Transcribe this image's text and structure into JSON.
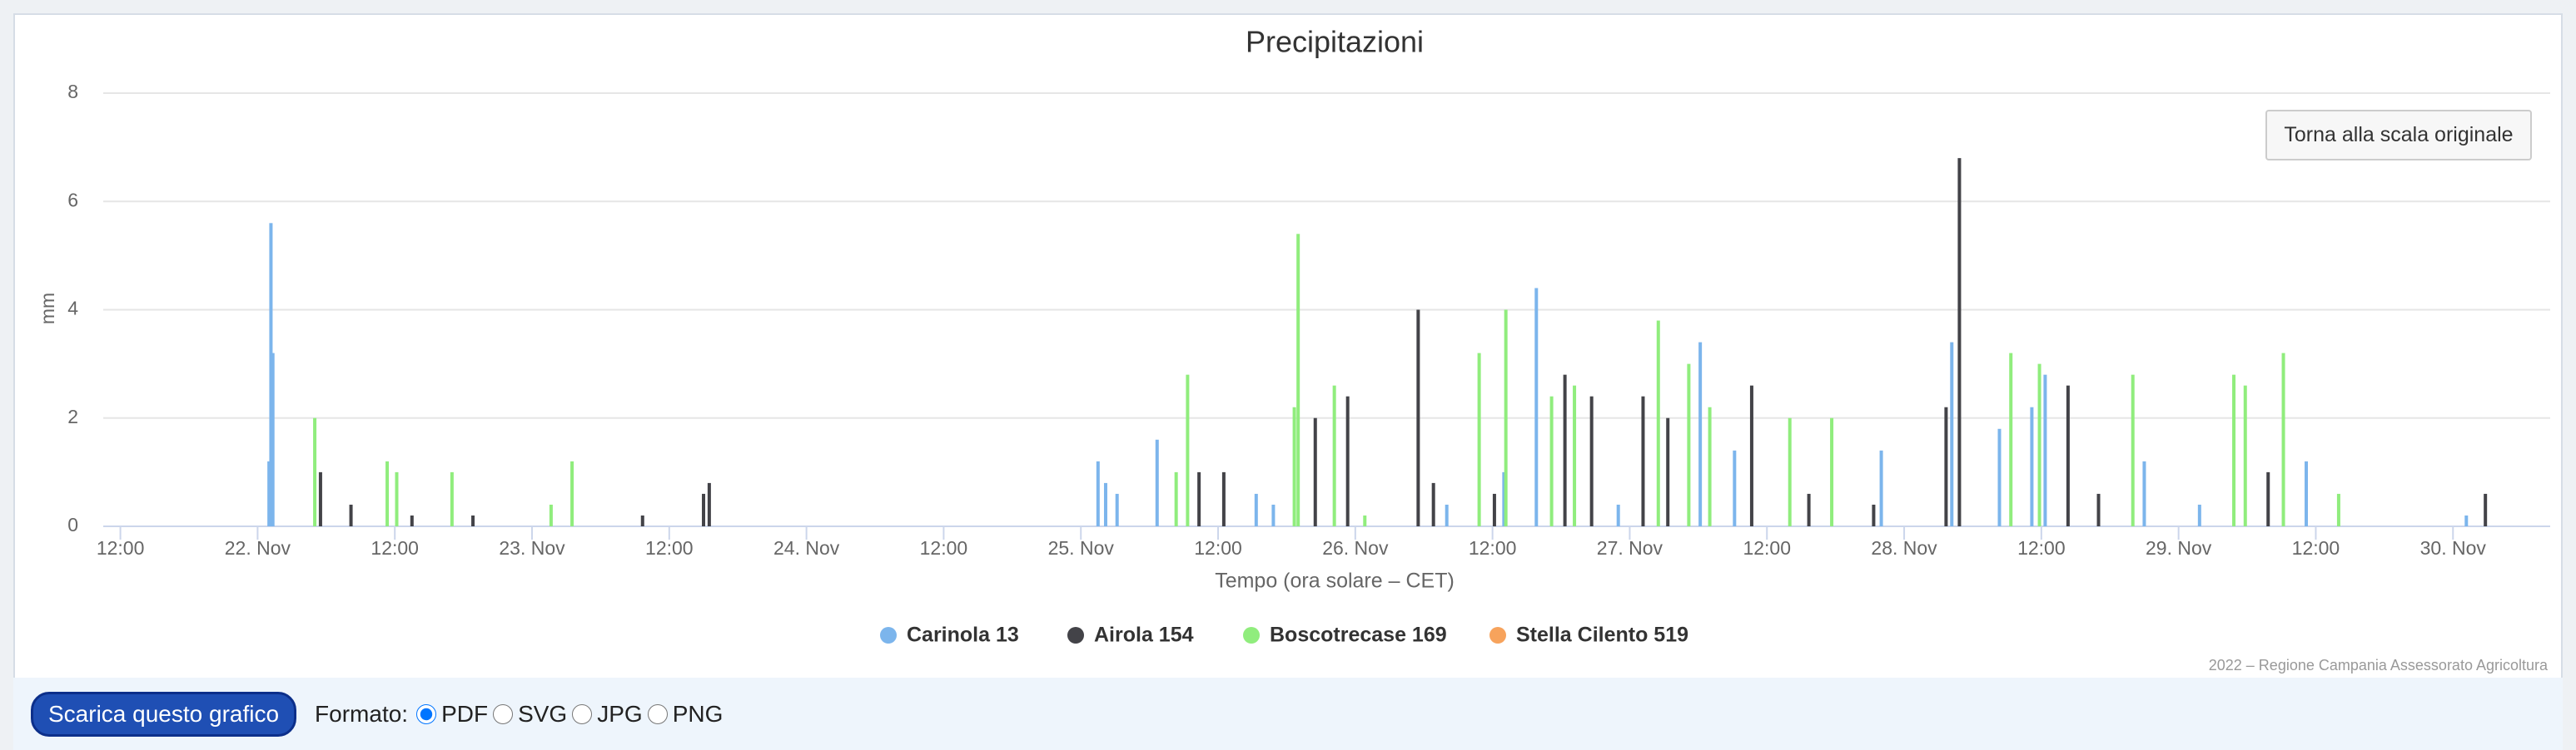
{
  "chart_data": {
    "type": "bar",
    "title": "Precipitazioni",
    "x_label": "Tempo (ora solare – CET)",
    "y_label": "mm",
    "credits": "2022 – Regione Campania Assessorato Agricoltura",
    "reset_button": "Torna alla scala originale",
    "xlim": [
      "21 Nov 10:30",
      "30 Nov 08:30"
    ],
    "xticks": [
      {
        "value": "21 Nov 12:00",
        "label": "12:00"
      },
      {
        "value": "22 Nov 00:00",
        "label": "22. Nov"
      },
      {
        "value": "22 Nov 12:00",
        "label": "12:00"
      },
      {
        "value": "23 Nov 00:00",
        "label": "23. Nov"
      },
      {
        "value": "23 Nov 12:00",
        "label": "12:00"
      },
      {
        "value": "24 Nov 00:00",
        "label": "24. Nov"
      },
      {
        "value": "24 Nov 12:00",
        "label": "12:00"
      },
      {
        "value": "25 Nov 00:00",
        "label": "25. Nov"
      },
      {
        "value": "25 Nov 12:00",
        "label": "12:00"
      },
      {
        "value": "26 Nov 00:00",
        "label": "26. Nov"
      },
      {
        "value": "26 Nov 12:00",
        "label": "12:00"
      },
      {
        "value": "27 Nov 00:00",
        "label": "27. Nov"
      },
      {
        "value": "27 Nov 12:00",
        "label": "12:00"
      },
      {
        "value": "28 Nov 00:00",
        "label": "28. Nov"
      },
      {
        "value": "28 Nov 12:00",
        "label": "12:00"
      },
      {
        "value": "29 Nov 00:00",
        "label": "29. Nov"
      },
      {
        "value": "29 Nov 12:00",
        "label": "12:00"
      },
      {
        "value": "30 Nov 00:00",
        "label": "30. Nov"
      }
    ],
    "ylim": [
      0,
      8
    ],
    "yticks": [
      0,
      2,
      4,
      6,
      8
    ],
    "grid": true,
    "series": [
      {
        "name": "Carinola 13",
        "color": "#7cb5ec",
        "x": [
          "22 Nov 01:00",
          "22 Nov 01:10",
          "22 Nov 01:20",
          "25 Nov 01:30",
          "25 Nov 02:10",
          "25 Nov 03:10",
          "25 Nov 06:40",
          "25 Nov 15:20",
          "25 Nov 16:50",
          "26 Nov 08:00",
          "26 Nov 13:00",
          "26 Nov 15:50",
          "26 Nov 23:00",
          "27 Nov 06:10",
          "27 Nov 09:10",
          "27 Nov 22:00",
          "28 Nov 04:10",
          "28 Nov 08:20",
          "28 Nov 11:10",
          "28 Nov 12:20",
          "28 Nov 21:00",
          "29 Nov 01:50",
          "29 Nov 11:10",
          "30 Nov 01:10"
        ],
        "values": [
          1.2,
          5.6,
          3.2,
          1.2,
          0.8,
          0.6,
          1.6,
          0.6,
          0.4,
          0.4,
          1.0,
          4.4,
          0.4,
          3.4,
          1.4,
          1.4,
          3.4,
          1.8,
          2.2,
          2.8,
          1.2,
          0.4,
          1.2,
          0.2
        ]
      },
      {
        "name": "Airola 154",
        "color": "#434348",
        "x": [
          "22 Nov 05:30",
          "22 Nov 08:10",
          "22 Nov 13:30",
          "22 Nov 18:50",
          "23 Nov 09:40",
          "23 Nov 15:00",
          "23 Nov 15:30",
          "25 Nov 10:20",
          "25 Nov 12:30",
          "25 Nov 20:30",
          "25 Nov 23:20",
          "26 Nov 05:30",
          "26 Nov 06:50",
          "26 Nov 12:10",
          "26 Nov 18:20",
          "26 Nov 20:40",
          "27 Nov 01:10",
          "27 Nov 03:20",
          "27 Nov 10:40",
          "27 Nov 15:40",
          "27 Nov 21:20",
          "28 Nov 03:40",
          "28 Nov 04:50",
          "28 Nov 14:20",
          "28 Nov 17:00",
          "29 Nov 07:50",
          "30 Nov 02:50"
        ],
        "values": [
          1.0,
          0.4,
          0.2,
          0.2,
          0.2,
          0.6,
          0.8,
          1.0,
          1.0,
          2.0,
          2.4,
          4.0,
          0.8,
          0.6,
          2.8,
          2.4,
          2.4,
          2.0,
          2.6,
          0.6,
          0.4,
          2.2,
          6.8,
          2.6,
          0.6,
          1.0,
          0.6
        ]
      },
      {
        "name": "Boscotrecase 169",
        "color": "#90ed7d",
        "x": [
          "22 Nov 05:00",
          "22 Nov 11:20",
          "22 Nov 12:10",
          "22 Nov 17:00",
          "23 Nov 01:40",
          "23 Nov 03:30",
          "25 Nov 08:20",
          "25 Nov 09:20",
          "25 Nov 18:40",
          "25 Nov 19:00",
          "25 Nov 22:10",
          "26 Nov 00:50",
          "26 Nov 10:50",
          "26 Nov 13:10",
          "26 Nov 17:10",
          "26 Nov 19:10",
          "27 Nov 02:30",
          "27 Nov 05:10",
          "27 Nov 07:00",
          "27 Nov 14:00",
          "27 Nov 17:40",
          "28 Nov 09:20",
          "28 Nov 11:50",
          "28 Nov 20:00",
          "29 Nov 04:50",
          "29 Nov 05:50",
          "29 Nov 09:10",
          "29 Nov 14:00"
        ],
        "values": [
          2.0,
          1.2,
          1.0,
          1.0,
          0.4,
          1.2,
          1.0,
          2.8,
          2.2,
          5.4,
          2.6,
          0.2,
          3.2,
          4.0,
          2.4,
          2.6,
          3.8,
          3.0,
          2.2,
          2.0,
          2.0,
          3.2,
          3.0,
          2.8,
          2.8,
          2.6,
          3.2,
          0.6
        ]
      },
      {
        "name": "Stella Cilento 519",
        "color": "#f7a35c",
        "x": [],
        "values": []
      }
    ]
  },
  "toolbar": {
    "download_button": "Scarica questo grafico",
    "format_label": "Formato:",
    "formats": [
      "PDF",
      "SVG",
      "JPG",
      "PNG"
    ]
  }
}
